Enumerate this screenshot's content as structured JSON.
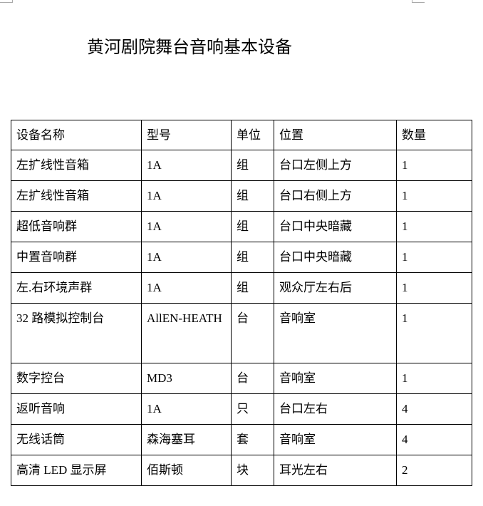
{
  "title": "黄河剧院舞台音响基本设备",
  "table": {
    "headers": [
      "设备名称",
      "型号",
      "单位",
      "位置",
      "数量"
    ],
    "rows": [
      [
        "左扩线性音箱",
        "1A",
        "组",
        "台口左侧上方",
        "1"
      ],
      [
        "左扩线性音箱",
        "1A",
        "组",
        "台口右侧上方",
        "1"
      ],
      [
        "超低音响群",
        "1A",
        "组",
        "台口中央暗藏",
        "1"
      ],
      [
        "中置音响群",
        "1A",
        "组",
        "台口中央暗藏",
        "1"
      ],
      [
        "左.右环境声群",
        "1A",
        "组",
        "观众厅左右后",
        "1"
      ],
      [
        "32 路模拟控制台",
        "AllEN-HEATH",
        "台",
        "音响室",
        "1"
      ],
      [
        "数字控台",
        "MD3",
        "台",
        "音响室",
        "1"
      ],
      [
        "返听音响",
        "1A",
        "只",
        "台口左右",
        "4"
      ],
      [
        "无线话筒",
        "森海塞耳",
        "套",
        "音响室",
        "4"
      ],
      [
        "高清 LED 显示屏",
        "佰斯顿",
        "块",
        "耳光左右",
        "2"
      ]
    ]
  }
}
